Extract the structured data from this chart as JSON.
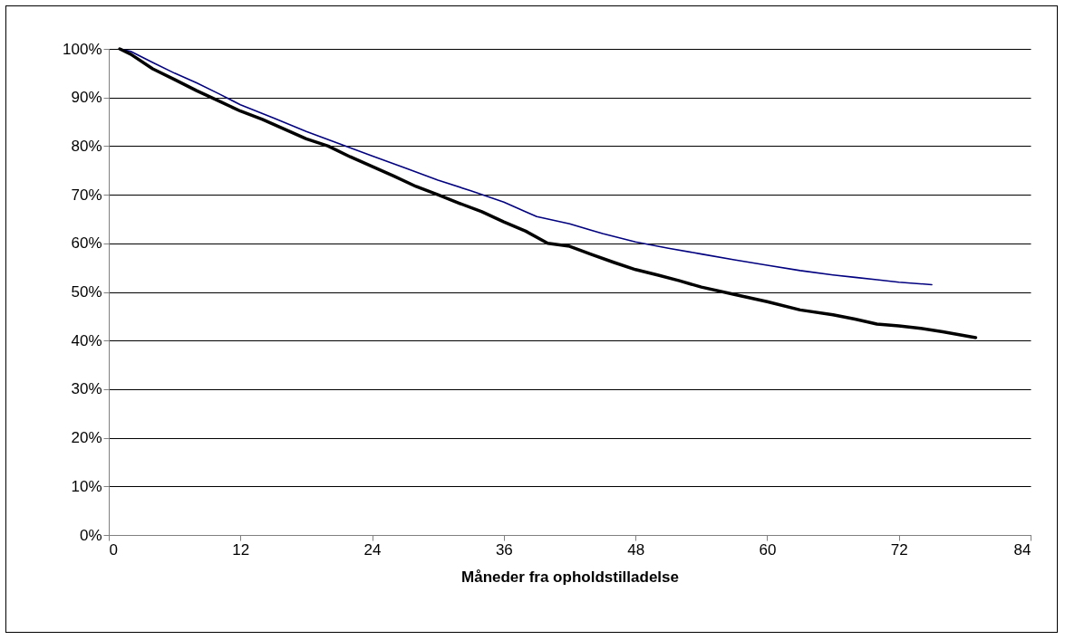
{
  "chart_data": {
    "type": "line",
    "xlabel": "Måneder fra opholdstilladelse",
    "xlim": [
      0,
      84
    ],
    "xticks": [
      0,
      12,
      24,
      36,
      48,
      60,
      72,
      84
    ],
    "ylim": [
      0,
      100
    ],
    "yticks": [
      {
        "value": 0,
        "label": "0%"
      },
      {
        "value": 10,
        "label": "10%"
      },
      {
        "value": 20,
        "label": "20%"
      },
      {
        "value": 30,
        "label": "30%"
      },
      {
        "value": 40,
        "label": "40%"
      },
      {
        "value": 50,
        "label": "50%"
      },
      {
        "value": 60,
        "label": "60%"
      },
      {
        "value": 70,
        "label": "70%"
      },
      {
        "value": 80,
        "label": "80%"
      },
      {
        "value": 90,
        "label": "90%"
      },
      {
        "value": 100,
        "label": "100%"
      }
    ],
    "grid": "y",
    "marker": "none",
    "line_style": "solid",
    "series": [
      {
        "color": "#000080",
        "x": [
          1,
          2,
          4,
          6,
          8,
          10,
          12,
          15,
          18,
          21,
          24,
          27,
          30,
          33,
          36,
          38,
          39,
          42,
          45,
          48,
          51,
          54,
          57,
          60,
          63,
          66,
          68,
          70,
          72,
          75
        ],
        "values": [
          100,
          99.5,
          97.2,
          95,
          93,
          90.8,
          88.5,
          85.8,
          83,
          80.5,
          78,
          75.5,
          73,
          70.8,
          68.5,
          66.5,
          65.5,
          64,
          62,
          60.3,
          59,
          57.8,
          56.6,
          55.5,
          54.4,
          53.5,
          53,
          52.5,
          52,
          51.5
        ]
      },
      {
        "color": "#000000",
        "x": [
          1,
          2,
          4,
          6,
          8,
          10,
          12,
          14,
          16,
          18,
          20,
          22,
          24,
          26,
          28,
          30,
          32,
          34,
          36,
          38,
          40,
          42,
          44,
          46,
          48,
          50,
          52,
          54,
          57,
          60,
          63,
          66,
          68,
          70,
          72,
          74,
          76,
          79
        ],
        "values": [
          100,
          98.9,
          95.9,
          93.7,
          91.4,
          89.3,
          87.2,
          85.5,
          83.5,
          81.5,
          80,
          77.8,
          75.8,
          73.8,
          71.7,
          70,
          68.2,
          66.5,
          64.4,
          62.5,
          60,
          59.4,
          57.7,
          56.1,
          54.6,
          53.5,
          52.3,
          51,
          49.5,
          48,
          46.3,
          45.3,
          44.4,
          43.4,
          43,
          42.5,
          41.8,
          40.6
        ]
      }
    ]
  }
}
